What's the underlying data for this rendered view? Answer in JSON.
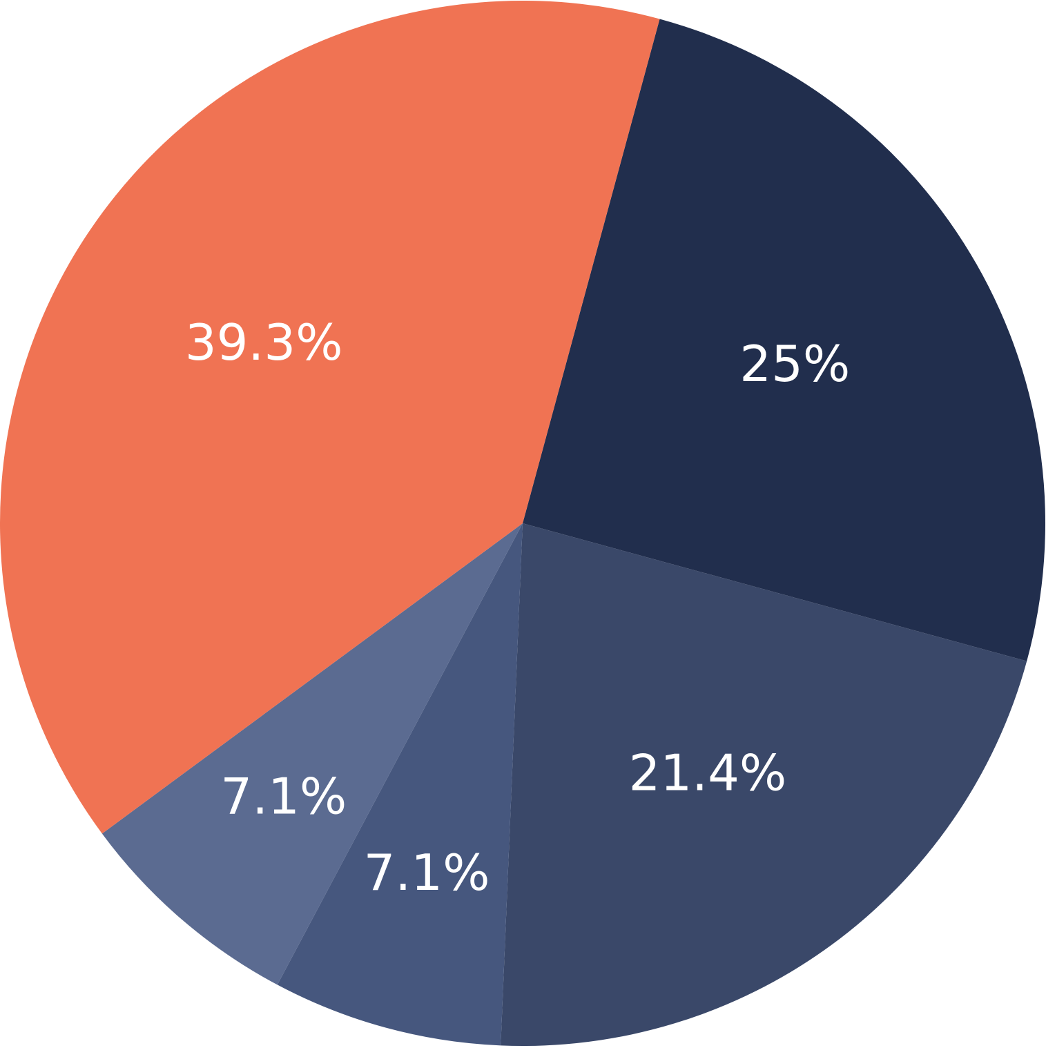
{
  "chart_data": {
    "type": "pie",
    "values": [
      25,
      21.4,
      7.1,
      7.1,
      39.3
    ],
    "value_labels": [
      "25%",
      "21.4%",
      "7.1%",
      "7.1%",
      "39.3%"
    ],
    "colors": [
      "#212e4d",
      "#3a4869",
      "#46577e",
      "#5b6b91",
      "#f07353"
    ]
  }
}
